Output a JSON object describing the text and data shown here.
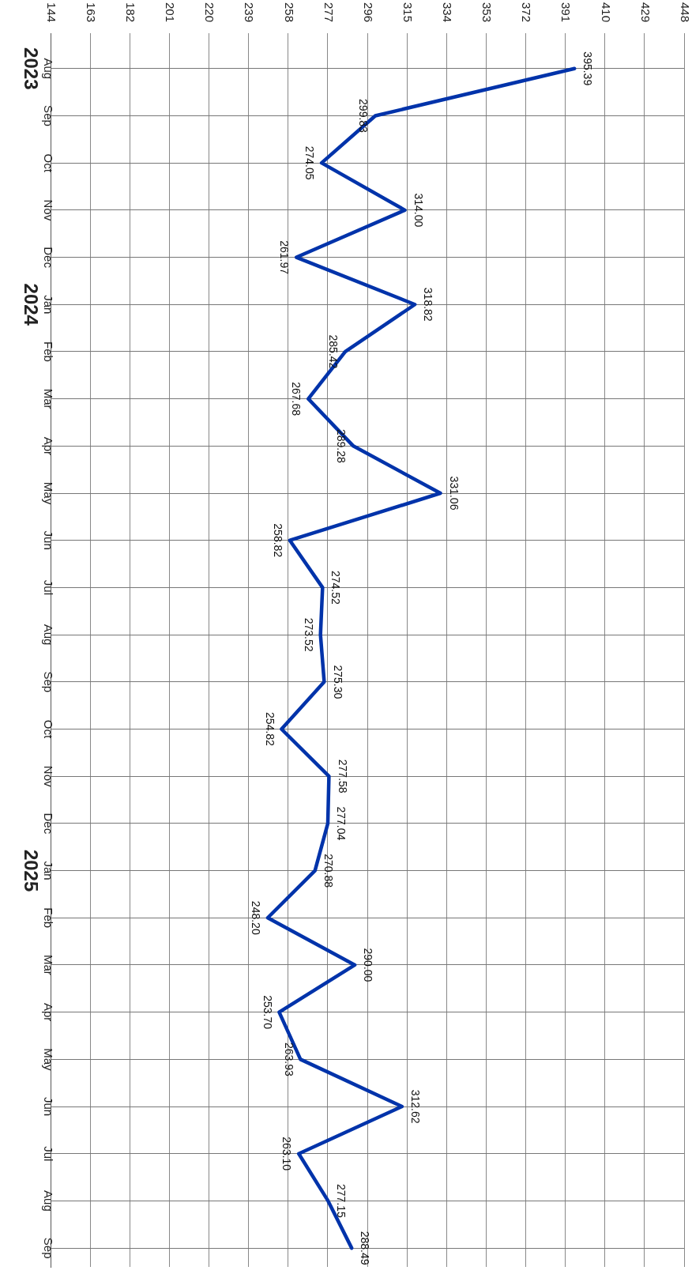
{
  "chart_data": {
    "type": "line",
    "orientation": "horizontal",
    "categories": [
      "Aug\n2023",
      "Sep",
      "Oct",
      "Nov",
      "Dec",
      "Jan\n2024",
      "Feb",
      "Mar",
      "Apr",
      "May",
      "Jun",
      "Jul",
      "Aug",
      "Sep",
      "Oct",
      "Nov",
      "Dec",
      "Jan\n2025",
      "Feb",
      "Mar",
      "Apr",
      "May",
      "Jun",
      "Jul",
      "Aug",
      "Sep"
    ],
    "series": [
      {
        "color": "#0033aa",
        "values": [
          395.39,
          299.83,
          274.05,
          314.0,
          261.97,
          318.82,
          285.42,
          267.68,
          289.28,
          331.06,
          258.82,
          274.52,
          273.52,
          275.3,
          254.82,
          277.58,
          277.04,
          270.88,
          248.2,
          290.0,
          253.7,
          263.93,
          312.62,
          263.1,
          277.15,
          288.49
        ],
        "value_labels": [
          "395.39",
          "299.83",
          "274.05",
          "314.00",
          "261.97",
          "318.82",
          "285.42",
          "267.68",
          "289.28",
          "331.06",
          "258.82",
          "274.52",
          "273.52",
          "275.30",
          "254.82",
          "277.58",
          "277.04",
          "270.88",
          "248.20",
          "290.00",
          "253.70",
          "263.93",
          "312.62",
          "263.10",
          "277.15",
          "288.49"
        ]
      }
    ],
    "xlim": [
      144,
      448
    ],
    "xticks": [
      144,
      163,
      182,
      201,
      220,
      239,
      258,
      277,
      296,
      315,
      334,
      353,
      372,
      391,
      410,
      429,
      448
    ],
    "grid": true,
    "legend": false,
    "marker": "none",
    "line_style": "solid"
  }
}
